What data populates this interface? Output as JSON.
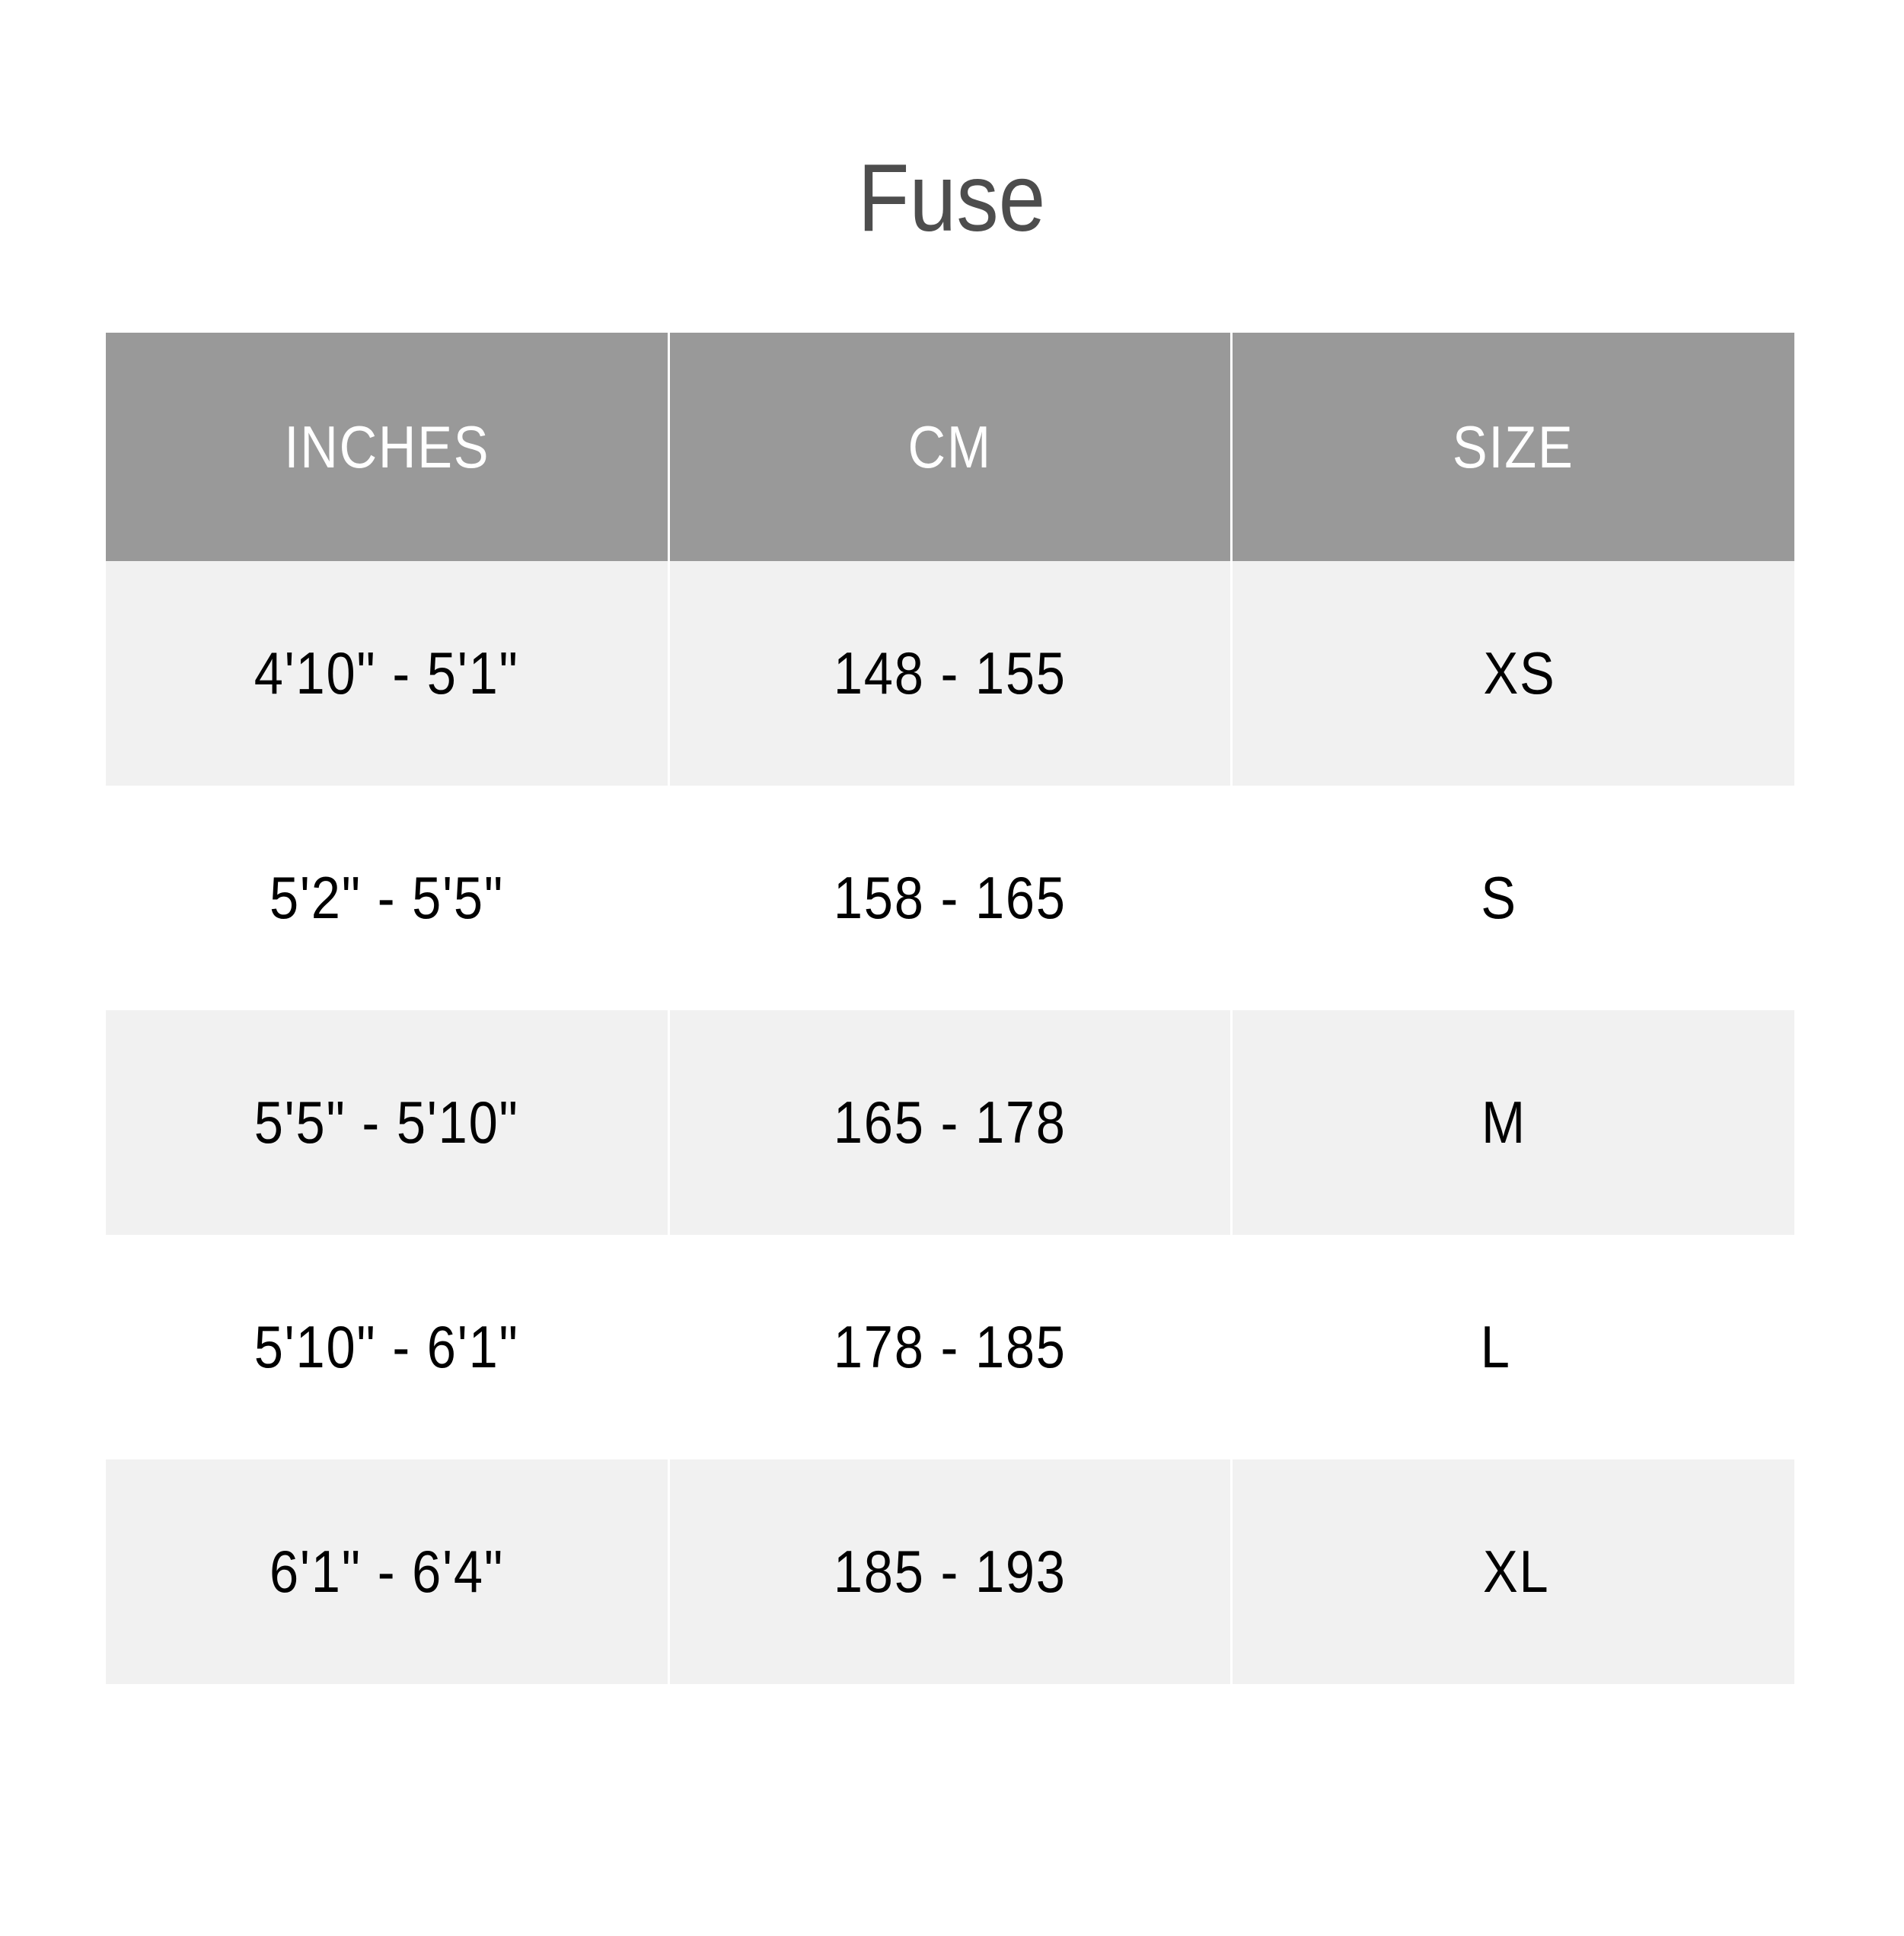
{
  "title": "Fuse",
  "table": {
    "headers": [
      "INCHES",
      "CM",
      "SIZE"
    ],
    "rows": [
      [
        "4'10\" - 5'1\"",
        "148 - 155",
        "XS"
      ],
      [
        "5'2\" - 5'5\"",
        "158 - 165",
        "S"
      ],
      [
        "5'5\" - 5'10\"",
        "165 - 178",
        "M"
      ],
      [
        "5'10\" - 6'1\"",
        "178 - 185",
        "L"
      ],
      [
        "6'1\" - 6'4\"",
        "185 - 193",
        "XL"
      ]
    ]
  },
  "colors": {
    "header_bg": "#999999",
    "stripe_bg": "#f1f1f1",
    "title": "#4d4d4d"
  }
}
